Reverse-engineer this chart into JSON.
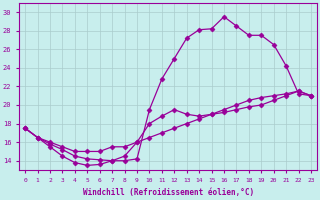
{
  "xlabel": "Windchill (Refroidissement éolien,°C)",
  "bg_color": "#c8eeed",
  "line_color": "#990099",
  "grid_color": "#aacccc",
  "xlim": [
    -0.5,
    23.5
  ],
  "ylim": [
    13.0,
    31.0
  ],
  "yticks": [
    14,
    16,
    18,
    20,
    22,
    24,
    26,
    28,
    30
  ],
  "line1_x": [
    0,
    1,
    2,
    3,
    4,
    5,
    6,
    7,
    8,
    9,
    10,
    11,
    12,
    13,
    14,
    15,
    16,
    17,
    18,
    19,
    20,
    21,
    22,
    23
  ],
  "line1_y": [
    17.5,
    16.5,
    15.8,
    15.2,
    14.5,
    14.2,
    14.1,
    14.0,
    14.0,
    14.2,
    19.5,
    22.8,
    25.0,
    27.2,
    28.1,
    28.2,
    29.5,
    28.5,
    27.5,
    27.5,
    26.5,
    24.2,
    21.2,
    21.0
  ],
  "line2_x": [
    0,
    1,
    2,
    3,
    4,
    5,
    6,
    7,
    8,
    9,
    10,
    11,
    12,
    13,
    14,
    15,
    16,
    17,
    18,
    19,
    20,
    21,
    22,
    23
  ],
  "line2_y": [
    17.5,
    16.5,
    16.0,
    15.5,
    15.0,
    15.0,
    15.0,
    15.5,
    15.5,
    16.0,
    16.5,
    17.0,
    17.5,
    18.0,
    18.5,
    19.0,
    19.5,
    20.0,
    20.5,
    20.8,
    21.0,
    21.2,
    21.5,
    21.0
  ],
  "line3_x": [
    0,
    1,
    2,
    3,
    4,
    5,
    6,
    7,
    8,
    9,
    10,
    11,
    12,
    13,
    14,
    15,
    16,
    17,
    18,
    19,
    20,
    21,
    22,
    23
  ],
  "line3_y": [
    17.5,
    16.5,
    15.5,
    14.5,
    13.8,
    13.5,
    13.6,
    14.0,
    14.5,
    16.0,
    18.0,
    18.8,
    19.5,
    19.0,
    18.8,
    19.0,
    19.2,
    19.5,
    19.8,
    20.0,
    20.5,
    21.0,
    21.5,
    21.0
  ]
}
